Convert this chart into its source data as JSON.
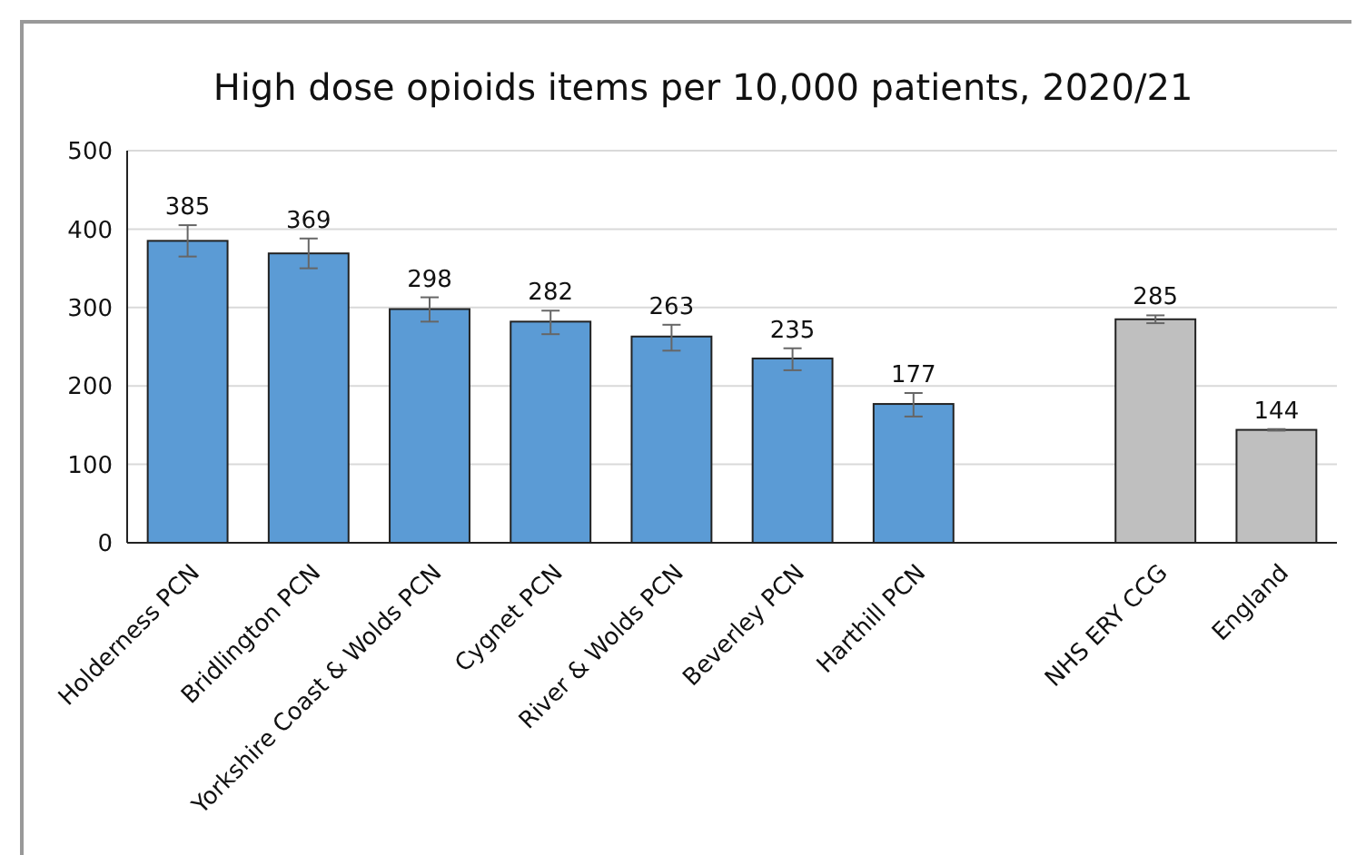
{
  "chart_data": {
    "type": "bar",
    "title": "High dose opioids items per 10,000 patients, 2020/21",
    "categories": [
      "Holderness PCN",
      "Bridlington PCN",
      "Yorkshire Coast & Wolds PCN",
      "Cygnet PCN",
      "River & Wolds PCN",
      "Beverley PCN",
      "Harthill PCN",
      null,
      "NHS ERY CCG",
      "England"
    ],
    "values": [
      385,
      369,
      298,
      282,
      263,
      235,
      177,
      null,
      285,
      144
    ],
    "colors": [
      "#5b9bd5",
      "#5b9bd5",
      "#5b9bd5",
      "#5b9bd5",
      "#5b9bd5",
      "#5b9bd5",
      "#5b9bd5",
      null,
      "#bfbfbf",
      "#bfbfbf"
    ],
    "errors": [
      [
        365,
        405
      ],
      [
        350,
        388
      ],
      [
        282,
        313
      ],
      [
        266,
        296
      ],
      [
        245,
        278
      ],
      [
        220,
        248
      ],
      [
        161,
        191
      ],
      null,
      [
        280,
        290
      ],
      [
        143,
        145
      ]
    ],
    "ylim": [
      0,
      500
    ],
    "yticks": [
      0,
      100,
      200,
      300,
      400,
      500
    ],
    "grid": "y",
    "data_labels": true
  }
}
